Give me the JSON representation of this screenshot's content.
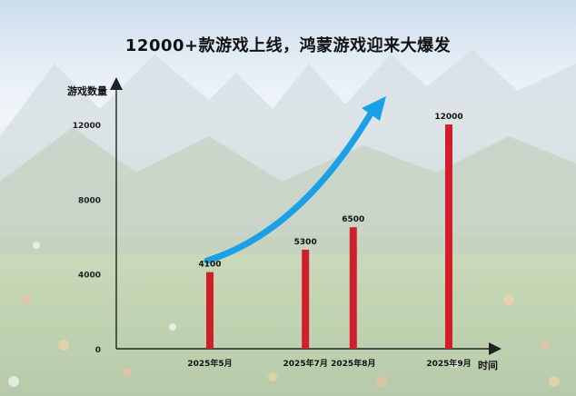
{
  "title": "12000+款游戏上线，鸿蒙游戏迎来大爆发",
  "chart_data": {
    "type": "bar",
    "title": "12000+款游戏上线，鸿蒙游戏迎来大爆发",
    "xlabel": "时间",
    "ylabel": "游戏数量",
    "categories": [
      "2025年5月",
      "2025年7月",
      "2025年8月",
      "2025年9月"
    ],
    "x_positions": [
      0,
      2,
      3,
      5
    ],
    "values": [
      4100,
      5300,
      6500,
      12000
    ],
    "data_labels": [
      "4100",
      "5300",
      "6500",
      "12000"
    ],
    "yticks": [
      0,
      4000,
      8000,
      12000
    ],
    "ylim": [
      0,
      14000
    ],
    "bar_color": "#d01f2a",
    "annotation": "blue upward trend arrow",
    "arrow_color": "#1aa0e6",
    "grid": false
  }
}
